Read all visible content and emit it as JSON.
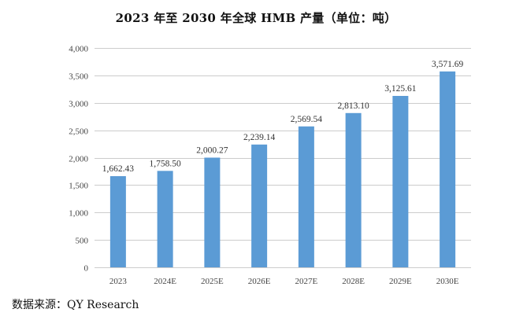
{
  "chart_data": {
    "type": "bar",
    "title": "2023 年至 2030 年全球 HMB 产量（单位：吨）",
    "categories": [
      "2023",
      "2024E",
      "2025E",
      "2026E",
      "2027E",
      "2028E",
      "2029E",
      "2030E"
    ],
    "values": [
      1662.43,
      1758.5,
      2000.27,
      2239.14,
      2569.54,
      2813.1,
      3125.61,
      3571.69
    ],
    "value_labels": [
      "1,662.43",
      "1,758.50",
      "2,000.27",
      "2,239.14",
      "2,569.54",
      "2,813.10",
      "3,125.61",
      "3,571.69"
    ],
    "ylim": [
      0,
      4000
    ],
    "yticks": [
      0,
      500,
      1000,
      1500,
      2000,
      2500,
      3000,
      3500,
      4000
    ],
    "ytick_labels": [
      "0",
      "500",
      "1,000",
      "1,500",
      "2,000",
      "2,500",
      "3,000",
      "3,500",
      "4,000"
    ],
    "grid": true,
    "legend": "none",
    "bar_color": "#5b9bd5",
    "xlabel": "",
    "ylabel": ""
  },
  "source": "数据来源：QY Research"
}
